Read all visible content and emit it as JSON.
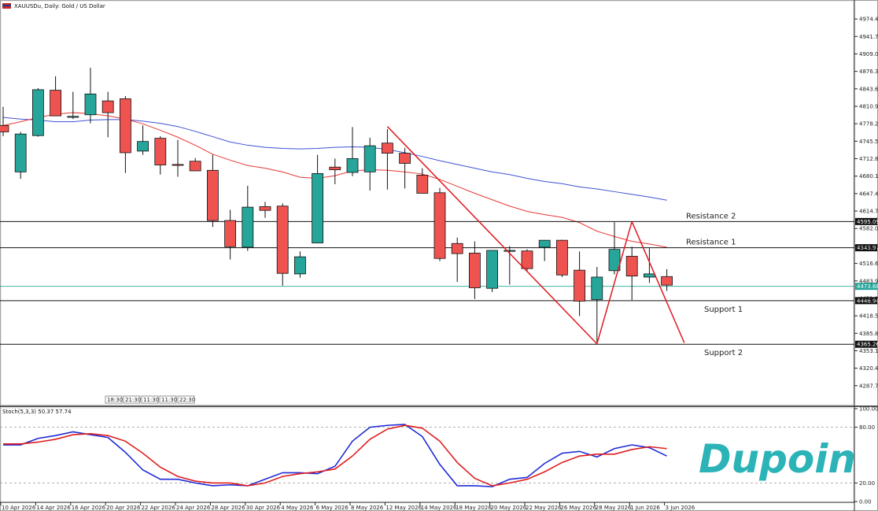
{
  "header": {
    "symbol": "XAUUSDu, Daily:  Gold / US Dollar"
  },
  "stoch_header": "Stoch(5,3,3) 50.37 57.74",
  "time_badges": [
    "18:30",
    "21:30",
    "11:30",
    "11:30",
    "22:30"
  ],
  "brand": {
    "logo_text": "Dupoin"
  },
  "colors": {
    "bull": "#26a69a",
    "bear": "#ef5350",
    "ma_fast": "#e53935",
    "ma_slow": "#3f51d4",
    "stoch_k": "#1f2bd6",
    "stoch_d": "#e01e1e",
    "trend": "#e0191f",
    "current_price": "#26a69a"
  },
  "chart_data": {
    "type": "candlestick",
    "price_axis": {
      "min": 4255.0,
      "max": 5007.0,
      "ticks": [
        "4974.40",
        "4941.70",
        "4909.00",
        "4876.30",
        "4843.60",
        "4810.90",
        "4778.20",
        "4745.50",
        "4712.80",
        "4680.10",
        "4647.40",
        "4614.70",
        "4582.00",
        "4549.30",
        "4516.60",
        "4483.90",
        "4451.20",
        "4418.50",
        "4385.80",
        "4353.10",
        "4320.40",
        "4287.70"
      ]
    },
    "x_labels": [
      "10 Apr 2026",
      "14 Apr 2026",
      "16 Apr 2026",
      "20 Apr 2026",
      "22 Apr 2026",
      "24 Apr 2026",
      "28 Apr 2026",
      "30 Apr 2026",
      "4 May 2026",
      "6 May 2026",
      "8 May 2026",
      "12 May 2026",
      "14 May 2026",
      "18 May 2026",
      "20 May 2026",
      "22 May 2026",
      "26 May 2026",
      "28 May 2026",
      "1 Jun 2026",
      "3 Jun 2026"
    ],
    "candles": [
      {
        "o": 4775,
        "h": 4810,
        "l": 4755,
        "c": 4763
      },
      {
        "o": 4688,
        "h": 4763,
        "l": 4675,
        "c": 4759
      },
      {
        "o": 4756,
        "h": 4845,
        "l": 4754,
        "c": 4842
      },
      {
        "o": 4841,
        "h": 4867,
        "l": 4793,
        "c": 4793
      },
      {
        "o": 4791,
        "h": 4838,
        "l": 4787,
        "c": 4792
      },
      {
        "o": 4795,
        "h": 4883,
        "l": 4779,
        "c": 4834
      },
      {
        "o": 4821,
        "h": 4838,
        "l": 4753,
        "c": 4799
      },
      {
        "o": 4825,
        "h": 4830,
        "l": 4686,
        "c": 4724
      },
      {
        "o": 4727,
        "h": 4775,
        "l": 4720,
        "c": 4745
      },
      {
        "o": 4751,
        "h": 4755,
        "l": 4683,
        "c": 4701
      },
      {
        "o": 4702,
        "h": 4748,
        "l": 4679,
        "c": 4701
      },
      {
        "o": 4708,
        "h": 4714,
        "l": 4690,
        "c": 4690
      },
      {
        "o": 4691,
        "h": 4720,
        "l": 4585,
        "c": 4597
      },
      {
        "o": 4597,
        "h": 4617,
        "l": 4524,
        "c": 4548
      },
      {
        "o": 4547,
        "h": 4662,
        "l": 4540,
        "c": 4622
      },
      {
        "o": 4623,
        "h": 4632,
        "l": 4602,
        "c": 4616
      },
      {
        "o": 4624,
        "h": 4629,
        "l": 4475,
        "c": 4498
      },
      {
        "o": 4497,
        "h": 4539,
        "l": 4490,
        "c": 4529
      },
      {
        "o": 4555,
        "h": 4720,
        "l": 4555,
        "c": 4685
      },
      {
        "o": 4697,
        "h": 4713,
        "l": 4665,
        "c": 4692
      },
      {
        "o": 4687,
        "h": 4772,
        "l": 4680,
        "c": 4713
      },
      {
        "o": 4688,
        "h": 4752,
        "l": 4653,
        "c": 4737
      },
      {
        "o": 4742,
        "h": 4768,
        "l": 4655,
        "c": 4723
      },
      {
        "o": 4723,
        "h": 4733,
        "l": 4657,
        "c": 4704
      },
      {
        "o": 4682,
        "h": 4695,
        "l": 4650,
        "c": 4648
      },
      {
        "o": 4649,
        "h": 4658,
        "l": 4521,
        "c": 4526
      },
      {
        "o": 4554,
        "h": 4565,
        "l": 4482,
        "c": 4535
      },
      {
        "o": 4536,
        "h": 4558,
        "l": 4450,
        "c": 4471
      },
      {
        "o": 4470,
        "h": 4540,
        "l": 4463,
        "c": 4541
      },
      {
        "o": 4541,
        "h": 4549,
        "l": 4477,
        "c": 4541
      },
      {
        "o": 4540,
        "h": 4543,
        "l": 4503,
        "c": 4507
      },
      {
        "o": 4547,
        "h": 4559,
        "l": 4521,
        "c": 4560
      },
      {
        "o": 4560,
        "h": 4561,
        "l": 4491,
        "c": 4495
      },
      {
        "o": 4504,
        "h": 4539,
        "l": 4418,
        "c": 4446
      },
      {
        "o": 4449,
        "h": 4510,
        "l": 4369,
        "c": 4491
      },
      {
        "o": 4503,
        "h": 4594,
        "l": 4496,
        "c": 4543
      },
      {
        "o": 4530,
        "h": 4548,
        "l": 4448,
        "c": 4493
      },
      {
        "o": 4491,
        "h": 4545,
        "l": 4480,
        "c": 4497
      },
      {
        "o": 4492,
        "h": 4506,
        "l": 4465,
        "c": 4476
      }
    ],
    "ma_fast": [
      4775,
      4782,
      4790,
      4796,
      4799,
      4797,
      4793,
      4787,
      4778,
      4766,
      4753,
      4738,
      4721,
      4710,
      4700,
      4695,
      4688,
      4678,
      4676,
      4681,
      4690,
      4692,
      4691,
      4688,
      4684,
      4674,
      4661,
      4648,
      4636,
      4624,
      4614,
      4608,
      4603,
      4593,
      4577,
      4567,
      4558,
      4553,
      4547
    ],
    "ma_slow": [
      4790,
      4787,
      4785,
      4782,
      4782,
      4785,
      4786,
      4786,
      4783,
      4779,
      4773,
      4764,
      4754,
      4744,
      4738,
      4734,
      4732,
      4731,
      4732,
      4734,
      4735,
      4734,
      4730,
      4724,
      4717,
      4709,
      4702,
      4695,
      4688,
      4683,
      4676,
      4670,
      4666,
      4660,
      4656,
      4651,
      4646,
      4641,
      4635
    ],
    "levels": [
      {
        "name": "Resistance 2",
        "price": 4595.09,
        "label": "4595.09"
      },
      {
        "name": "Resistance 1",
        "price": 4545.97,
        "label": "4545.97"
      },
      {
        "name": "Support 1",
        "price": 4446.94,
        "label": "4446.94"
      },
      {
        "name": "Support 2",
        "price": 4365.26,
        "label": "4365.26"
      }
    ],
    "current_price": {
      "price": 4473.68,
      "label": "4473.68"
    },
    "trendlines": [
      {
        "from": {
          "i": 22,
          "p": 4773
        },
        "to": {
          "i": 34,
          "p": 4366
        }
      },
      {
        "from": {
          "i": 34,
          "p": 4366
        },
        "to": {
          "i": 36,
          "p": 4595
        }
      },
      {
        "from": {
          "i": 36,
          "p": 4595
        },
        "to": {
          "i": 39,
          "p": 4368
        }
      }
    ],
    "stoch": {
      "ticks": [
        "100.00",
        "80.00",
        "20.00",
        "0.00"
      ],
      "levels": [
        80,
        20
      ],
      "k": [
        61,
        61,
        68,
        71,
        75,
        72,
        69,
        53,
        34,
        24,
        24,
        20,
        17,
        18,
        17,
        24,
        31,
        31,
        30,
        38,
        65,
        80,
        82,
        83,
        70,
        40,
        17,
        17,
        16,
        24,
        26,
        41,
        52,
        54,
        48,
        57,
        61,
        58,
        49
      ],
      "d": [
        62,
        62,
        64,
        67,
        72,
        73,
        71,
        65,
        52,
        37,
        27,
        22,
        20,
        20,
        17,
        20,
        27,
        30,
        32,
        35,
        49,
        67,
        78,
        82,
        79,
        65,
        42,
        25,
        17,
        20,
        24,
        32,
        42,
        49,
        51,
        51,
        56,
        59,
        57
      ]
    }
  }
}
